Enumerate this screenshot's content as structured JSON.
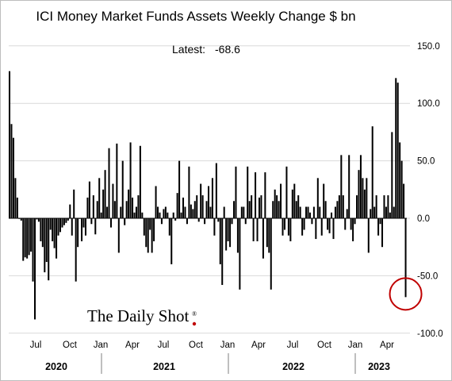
{
  "chart_data": {
    "type": "bar",
    "title": "ICI Money Market Funds Assets Weekly Change $ bn",
    "annotation": "Latest:",
    "latest_value": "-68.6",
    "ylim": [
      -100,
      150
    ],
    "yticks": [
      "150.0",
      "100.0",
      "50.0",
      "0.0",
      "-50.0",
      "-100.0"
    ],
    "ytick_values": [
      150,
      100,
      50,
      0,
      -50,
      -100
    ],
    "grid": true,
    "x_month_labels": [
      "Jul",
      "Oct",
      "Jan",
      "Apr",
      "Jul",
      "Oct",
      "Jan",
      "Apr",
      "Jul",
      "Oct",
      "Jan",
      "Apr"
    ],
    "x_year_labels": [
      "2020",
      "2021",
      "2022",
      "2023"
    ],
    "highlight": "latest bar circled in red",
    "colors": {
      "bars": "#000000",
      "grid": "#d9d9d9",
      "circle": "#c00000"
    },
    "values": [
      128,
      82,
      70,
      35,
      18,
      0,
      -2,
      -37,
      -34,
      -35,
      -32,
      -29,
      -55,
      -88,
      -1,
      -3,
      -20,
      -25,
      -47,
      -38,
      -54,
      -10,
      -20,
      -26,
      -35,
      -15,
      -12,
      -8,
      -6,
      -4,
      -2,
      12,
      -15,
      25,
      -55,
      -25,
      0,
      -20,
      -8,
      -15,
      18,
      32,
      -5,
      20,
      -14,
      15,
      35,
      5,
      25,
      42,
      10,
      61,
      -8,
      30,
      15,
      65,
      -30,
      10,
      50,
      -6,
      15,
      25,
      66,
      18,
      5,
      10,
      20,
      63,
      5,
      -15,
      -25,
      -30,
      -10,
      -30,
      -20,
      28,
      10,
      5,
      -5,
      8,
      10,
      5,
      -15,
      -40,
      5,
      -2,
      22,
      50,
      5,
      18,
      10,
      -5,
      45,
      12,
      8,
      15,
      20,
      -3,
      30,
      20,
      -5,
      15,
      28,
      10,
      35,
      -15,
      48,
      -3,
      -40,
      -58,
      10,
      -28,
      -20,
      -25,
      -5,
      15,
      45,
      -30,
      -62,
      10,
      10,
      -5,
      45,
      15,
      20,
      -20,
      40,
      -20,
      18,
      20,
      -35,
      40,
      -25,
      -30,
      -62,
      15,
      25,
      20,
      15,
      30,
      -15,
      -10,
      45,
      -15,
      -20,
      25,
      30,
      15,
      20,
      10,
      -15,
      -10,
      10,
      10,
      5,
      -5,
      10,
      -18,
      35,
      10,
      -15,
      30,
      15,
      -10,
      -13,
      5,
      -18,
      10,
      15,
      20,
      55,
      20,
      -10,
      8,
      55,
      -10,
      -20,
      -5,
      20,
      42,
      55,
      35,
      25,
      35,
      -30,
      8,
      80,
      10,
      20,
      -15,
      -5,
      -25,
      20,
      10,
      20,
      5,
      75,
      10,
      122,
      118,
      66,
      50,
      30,
      -68.6
    ]
  }
}
